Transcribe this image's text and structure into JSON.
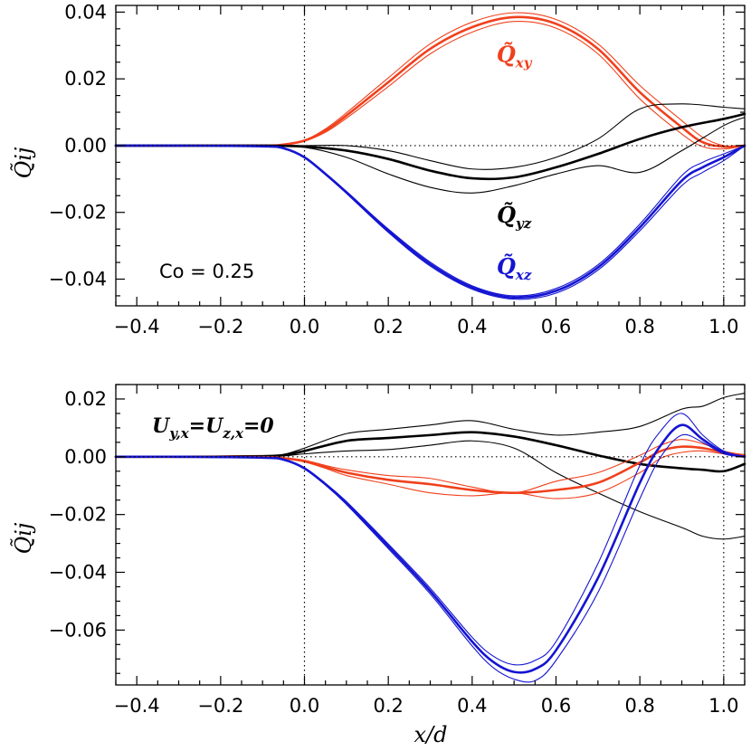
{
  "colors": {
    "xy": "#f0401c",
    "xz": "#1414d2",
    "yz": "#000000",
    "axis": "#000000"
  },
  "chart_data": [
    {
      "type": "line",
      "xlabel": "",
      "ylabel": "Q̃ij",
      "xlim": [
        -0.45,
        1.05
      ],
      "ylim": [
        -0.048,
        0.042
      ],
      "xticks": [
        -0.4,
        -0.2,
        0.0,
        0.2,
        0.4,
        0.6,
        0.8,
        1.0
      ],
      "xtick_labels": [
        "−0.4",
        "−0.2",
        "0.0",
        "0.2",
        "0.4",
        "0.6",
        "0.8",
        "1.0"
      ],
      "yticks": [
        -0.04,
        -0.02,
        0.0,
        0.02,
        0.04
      ],
      "ytick_labels": [
        "−0.04",
        "−0.02",
        "0.00",
        "0.02",
        "0.04"
      ],
      "vlines": [
        0.0,
        1.0
      ],
      "hline": 0.0,
      "annotation": "Co = 0.25",
      "series": [
        {
          "name": "Q̃xy",
          "label_main": "Q̃",
          "label_sub": "xy",
          "color_key": "xy",
          "x": [
            -0.45,
            -0.3,
            -0.1,
            -0.05,
            0.0,
            0.05,
            0.1,
            0.2,
            0.3,
            0.4,
            0.5,
            0.6,
            0.7,
            0.8,
            0.9,
            0.95,
            1.0,
            1.05
          ],
          "y": [
            0.0,
            0.0,
            0.0,
            0.0003,
            0.0015,
            0.0045,
            0.009,
            0.019,
            0.029,
            0.0355,
            0.0385,
            0.0365,
            0.029,
            0.016,
            0.0055,
            0.001,
            -0.0003,
            0.0
          ],
          "band_upper": [
            0.0,
            0.0,
            0.0,
            0.0003,
            0.0016,
            0.005,
            0.0098,
            0.0203,
            0.0305,
            0.037,
            0.0398,
            0.0378,
            0.0305,
            0.018,
            0.0075,
            0.0025,
            0.0,
            0.0
          ],
          "band_lower": [
            0.0,
            0.0,
            0.0,
            0.0002,
            0.0013,
            0.004,
            0.0082,
            0.0177,
            0.0275,
            0.034,
            0.0372,
            0.0352,
            0.0275,
            0.014,
            0.0035,
            -0.0003,
            -0.001,
            0.0
          ]
        },
        {
          "name": "Q̃yz",
          "label_main": "Q̃",
          "label_sub": "yz",
          "color_key": "yz",
          "x": [
            -0.45,
            -0.3,
            -0.1,
            0.0,
            0.1,
            0.2,
            0.3,
            0.4,
            0.5,
            0.6,
            0.7,
            0.8,
            0.9,
            1.0,
            1.05
          ],
          "y": [
            0.0,
            0.0,
            0.0,
            -0.0003,
            -0.0015,
            -0.004,
            -0.0075,
            -0.0098,
            -0.0095,
            -0.0065,
            -0.0025,
            0.002,
            0.0055,
            0.008,
            0.0095
          ],
          "band_upper": [
            0.0,
            0.0,
            0.0,
            0.0,
            0.0,
            -0.0015,
            -0.0045,
            -0.007,
            -0.0065,
            -0.0035,
            0.002,
            0.011,
            0.0125,
            0.0115,
            0.011
          ],
          "band_lower": [
            0.0,
            0.0,
            0.0,
            -0.0005,
            -0.0035,
            -0.0085,
            -0.0125,
            -0.0142,
            -0.012,
            -0.0085,
            -0.006,
            -0.008,
            -0.0015,
            0.006,
            0.0085
          ]
        },
        {
          "name": "Q̃xz",
          "label_main": "Q̃",
          "label_sub": "xz",
          "color_key": "xz",
          "x": [
            -0.45,
            -0.3,
            -0.1,
            -0.05,
            0.0,
            0.05,
            0.1,
            0.2,
            0.3,
            0.4,
            0.5,
            0.6,
            0.7,
            0.8,
            0.9,
            0.95,
            1.0,
            1.05
          ],
          "y": [
            0.0,
            0.0,
            -0.0002,
            -0.0008,
            -0.0035,
            -0.0085,
            -0.014,
            -0.0255,
            -0.0355,
            -0.0425,
            -0.0455,
            -0.0435,
            -0.0365,
            -0.0245,
            -0.0105,
            -0.0065,
            -0.0035,
            0.0
          ],
          "band_upper": [
            0.0,
            0.0,
            -0.0002,
            -0.0008,
            -0.0034,
            -0.0083,
            -0.0137,
            -0.025,
            -0.0349,
            -0.042,
            -0.045,
            -0.0428,
            -0.0357,
            -0.0235,
            -0.009,
            -0.005,
            -0.0025,
            0.0
          ],
          "band_lower": [
            0.0,
            0.0,
            -0.0002,
            -0.0008,
            -0.0036,
            -0.0087,
            -0.0143,
            -0.026,
            -0.0361,
            -0.043,
            -0.046,
            -0.0442,
            -0.0373,
            -0.0255,
            -0.012,
            -0.008,
            -0.0045,
            0.0
          ]
        }
      ]
    },
    {
      "type": "line",
      "xlabel": "x/d",
      "ylabel": "Q̃ij",
      "xlim": [
        -0.45,
        1.05
      ],
      "ylim": [
        -0.079,
        0.025
      ],
      "xticks": [
        -0.4,
        -0.2,
        0.0,
        0.2,
        0.4,
        0.6,
        0.8,
        1.0
      ],
      "xtick_labels": [
        "−0.4",
        "−0.2",
        "0.0",
        "0.2",
        "0.4",
        "0.6",
        "0.8",
        "1.0"
      ],
      "yticks": [
        -0.06,
        -0.04,
        -0.02,
        0.0,
        0.02
      ],
      "ytick_labels": [
        "−0.06",
        "−0.04",
        "−0.02",
        "0.00",
        "0.02"
      ],
      "vlines": [
        0.0,
        1.0
      ],
      "hline": 0.0,
      "annotation": "Uy,x=Uz,x=0",
      "annotation_parts": [
        "U",
        "y,x",
        "=U",
        "z,x",
        "=0"
      ],
      "series": [
        {
          "name": "Q̃yz",
          "color_key": "yz",
          "x": [
            -0.45,
            -0.3,
            -0.1,
            -0.05,
            0.0,
            0.1,
            0.2,
            0.3,
            0.4,
            0.5,
            0.6,
            0.7,
            0.8,
            0.9,
            0.95,
            1.0,
            1.05
          ],
          "y": [
            0.0,
            0.0,
            0.0002,
            0.0006,
            0.002,
            0.0055,
            0.0065,
            0.0075,
            0.0085,
            0.007,
            0.004,
            0.0005,
            -0.0025,
            -0.004,
            -0.0045,
            -0.005,
            -0.0025
          ],
          "band_upper": [
            0.0,
            0.0,
            0.0003,
            0.0008,
            0.003,
            0.008,
            0.0095,
            0.011,
            0.0125,
            0.0095,
            0.0075,
            0.0085,
            0.0105,
            0.0165,
            0.0175,
            0.0205,
            0.022
          ],
          "band_lower": [
            0.0,
            0.0,
            0.0001,
            0.0003,
            0.001,
            0.002,
            0.0025,
            0.004,
            0.0055,
            0.003,
            -0.0055,
            -0.0125,
            -0.019,
            -0.0245,
            -0.0275,
            -0.0285,
            -0.0275
          ]
        },
        {
          "name": "Q̃xy",
          "color_key": "xy",
          "x": [
            -0.45,
            -0.3,
            -0.1,
            -0.05,
            0.0,
            0.05,
            0.1,
            0.2,
            0.3,
            0.4,
            0.5,
            0.6,
            0.7,
            0.8,
            0.85,
            0.9,
            0.95,
            1.0,
            1.05
          ],
          "y": [
            0.0,
            0.0,
            -0.0001,
            -0.0005,
            -0.0015,
            -0.0035,
            -0.0055,
            -0.008,
            -0.0095,
            -0.0115,
            -0.0125,
            -0.0115,
            -0.009,
            -0.002,
            0.002,
            0.0035,
            0.003,
            0.0015,
            0.0005
          ],
          "band_upper": [
            0.0,
            0.0,
            -0.0001,
            -0.0004,
            -0.0012,
            -0.003,
            -0.0045,
            -0.0065,
            -0.0075,
            -0.0105,
            -0.0125,
            -0.0085,
            -0.0055,
            0.0005,
            0.004,
            0.006,
            0.0045,
            0.002,
            0.0005
          ],
          "band_lower": [
            0.0,
            0.0,
            -0.0001,
            -0.0006,
            -0.0018,
            -0.004,
            -0.0065,
            -0.0095,
            -0.0125,
            -0.0135,
            -0.0125,
            -0.0145,
            -0.0125,
            -0.0055,
            -0.0005,
            0.0015,
            0.002,
            0.001,
            0.0005
          ]
        },
        {
          "name": "Q̃xz",
          "color_key": "xz",
          "x": [
            -0.45,
            -0.3,
            -0.1,
            -0.05,
            0.0,
            0.05,
            0.1,
            0.2,
            0.3,
            0.4,
            0.45,
            0.5,
            0.55,
            0.6,
            0.7,
            0.8,
            0.85,
            0.9,
            0.95,
            1.0,
            1.05
          ],
          "y": [
            0.0,
            0.0,
            -0.0003,
            -0.001,
            -0.004,
            -0.0095,
            -0.016,
            -0.031,
            -0.0465,
            -0.064,
            -0.071,
            -0.0745,
            -0.0735,
            -0.067,
            -0.042,
            -0.009,
            0.004,
            0.011,
            0.006,
            0.0015,
            0.0
          ],
          "band_upper": [
            0.0,
            0.0,
            -0.0003,
            -0.001,
            -0.0038,
            -0.0092,
            -0.0155,
            -0.0302,
            -0.0455,
            -0.0625,
            -0.069,
            -0.072,
            -0.0705,
            -0.064,
            -0.037,
            -0.003,
            0.009,
            0.015,
            0.0075,
            0.002,
            0.0
          ],
          "band_lower": [
            0.0,
            0.0,
            -0.0003,
            -0.001,
            -0.0042,
            -0.0098,
            -0.0165,
            -0.0318,
            -0.0475,
            -0.0655,
            -0.073,
            -0.077,
            -0.0775,
            -0.0705,
            -0.047,
            -0.0145,
            0.0,
            0.0075,
            0.005,
            0.001,
            0.0
          ]
        }
      ]
    }
  ]
}
